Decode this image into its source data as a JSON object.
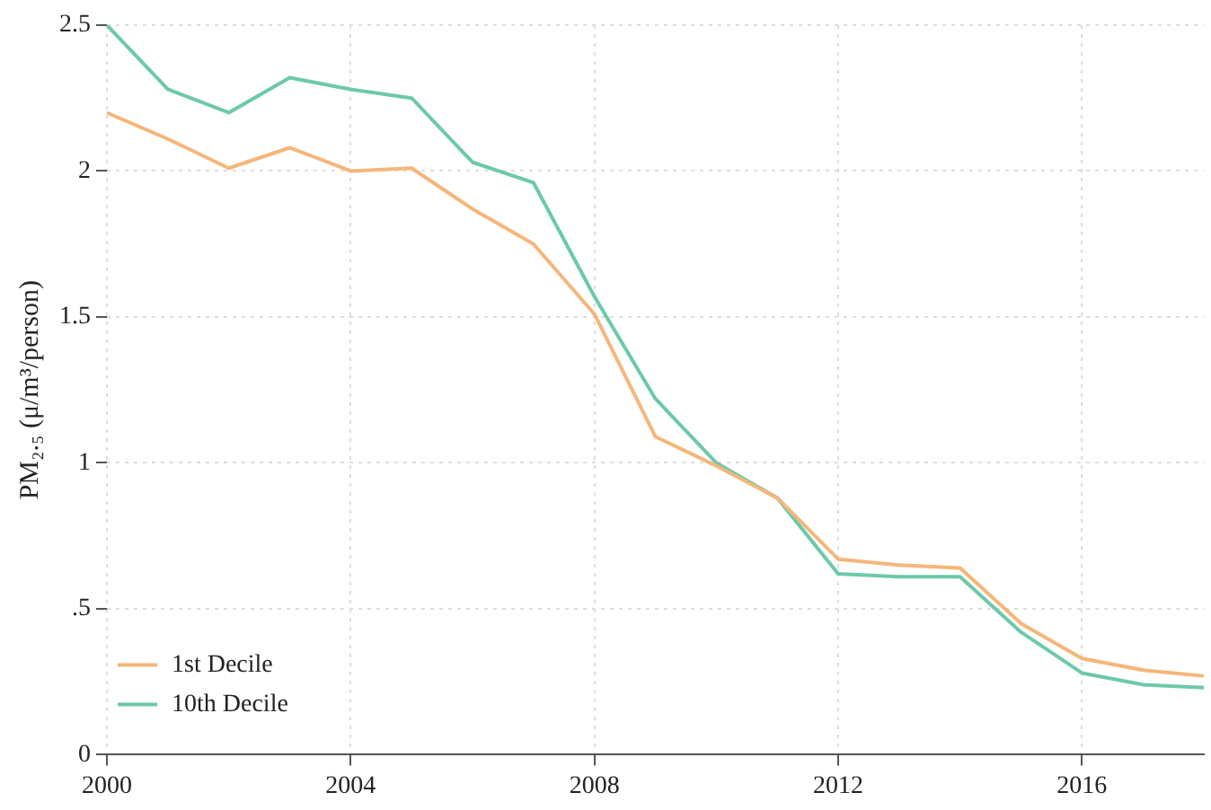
{
  "chart_data": {
    "type": "line",
    "ylabel": "PM₂.₅ (μ/m³/person)",
    "x": [
      2000,
      2001,
      2002,
      2003,
      2004,
      2005,
      2006,
      2007,
      2008,
      2009,
      2010,
      2011,
      2012,
      2013,
      2014,
      2015,
      2016,
      2017,
      2018
    ],
    "series": [
      {
        "name": "1st Decile",
        "color": "#f5b67a",
        "values": [
          2.2,
          2.11,
          2.01,
          2.08,
          2.0,
          2.01,
          1.87,
          1.75,
          1.51,
          1.09,
          0.99,
          0.88,
          0.67,
          0.65,
          0.64,
          0.45,
          0.33,
          0.29,
          0.27
        ]
      },
      {
        "name": "10th Decile",
        "color": "#6cc9a9",
        "values": [
          2.5,
          2.28,
          2.2,
          2.32,
          2.28,
          2.25,
          2.03,
          1.96,
          1.57,
          1.22,
          1.0,
          0.88,
          0.62,
          0.61,
          0.61,
          0.42,
          0.28,
          0.24,
          0.23
        ]
      }
    ],
    "xlim": [
      2000,
      2018
    ],
    "xticks": [
      2000,
      2004,
      2008,
      2012,
      2016
    ],
    "ylim": [
      0,
      2.5
    ],
    "yticks": [
      {
        "value": 0,
        "label": "0"
      },
      {
        "value": 0.5,
        "label": ".5"
      },
      {
        "value": 1,
        "label": "1"
      },
      {
        "value": 1.5,
        "label": "1.5"
      },
      {
        "value": 2,
        "label": "2"
      },
      {
        "value": 2.5,
        "label": "2.5"
      }
    ],
    "grid": true,
    "legend": "bottom left",
    "marker": "none",
    "line_style": "solid"
  }
}
